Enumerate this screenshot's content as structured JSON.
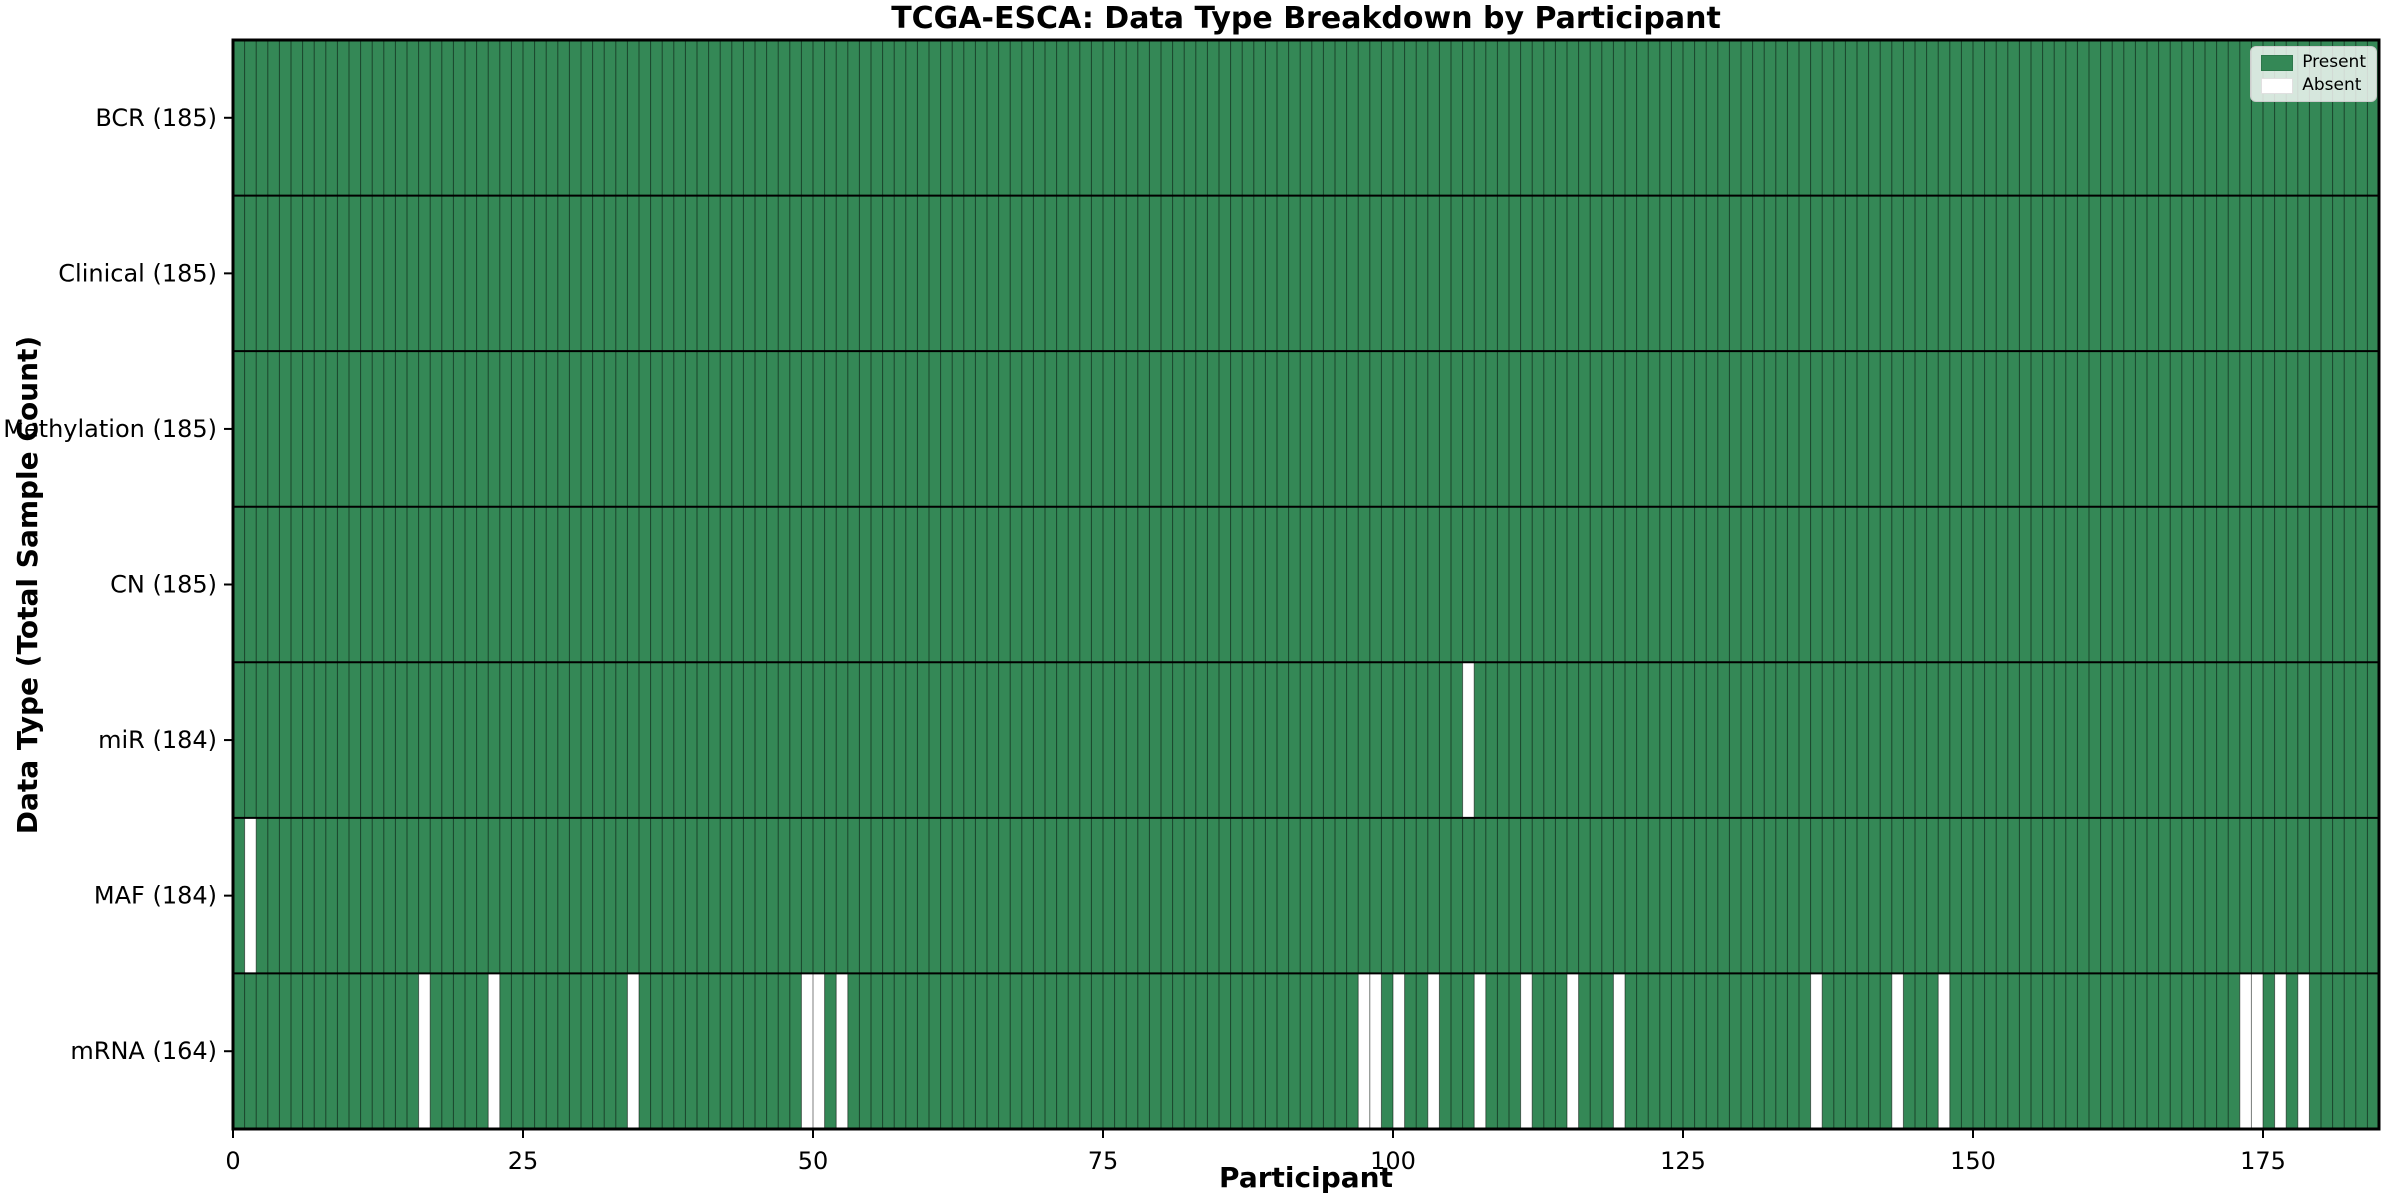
{
  "title": "TCGA-ESCA: Data Type Breakdown by Participant",
  "xlabel": "Participant",
  "ylabel": "Data Type (Total Sample Count)",
  "legend": {
    "position": "upper right",
    "items": [
      {
        "label": "Present",
        "color": "#348856"
      },
      {
        "label": "Absent",
        "color": "#ffffff"
      }
    ]
  },
  "colors": {
    "present": "#348856",
    "absent": "#ffffff",
    "column_grid": "rgba(0,0,0,0.5)",
    "row_divider": "#000000",
    "plot_border": "#000000",
    "text": "#000000"
  },
  "chart_data": {
    "type": "heatmap",
    "title": "TCGA-ESCA: Data Type Breakdown by Participant",
    "xlabel": "Participant",
    "ylabel": "Data Type (Total Sample Count)",
    "n_participants": 185,
    "xlim": [
      0,
      185
    ],
    "x_ticks": [
      0,
      25,
      50,
      75,
      100,
      125,
      150,
      175
    ],
    "grid": "column-separators-on",
    "legend_position": "upper right",
    "value_encoding": {
      "present": 1,
      "absent": 0
    },
    "rows": [
      {
        "label": "BCR (185)",
        "total": 185,
        "absent_participants": []
      },
      {
        "label": "Clinical (185)",
        "total": 185,
        "absent_participants": []
      },
      {
        "label": "Methylation (185)",
        "total": 185,
        "absent_participants": []
      },
      {
        "label": "CN (185)",
        "total": 185,
        "absent_participants": []
      },
      {
        "label": "miR (184)",
        "total": 184,
        "absent_participants": [
          106
        ]
      },
      {
        "label": "MAF (184)",
        "total": 184,
        "absent_participants": [
          1
        ]
      },
      {
        "label": "mRNA (164)",
        "total": 164,
        "absent_participants": [
          16,
          22,
          34,
          49,
          50,
          52,
          97,
          98,
          100,
          103,
          107,
          111,
          115,
          119,
          136,
          143,
          147,
          173,
          174,
          176,
          178
        ]
      }
    ]
  }
}
